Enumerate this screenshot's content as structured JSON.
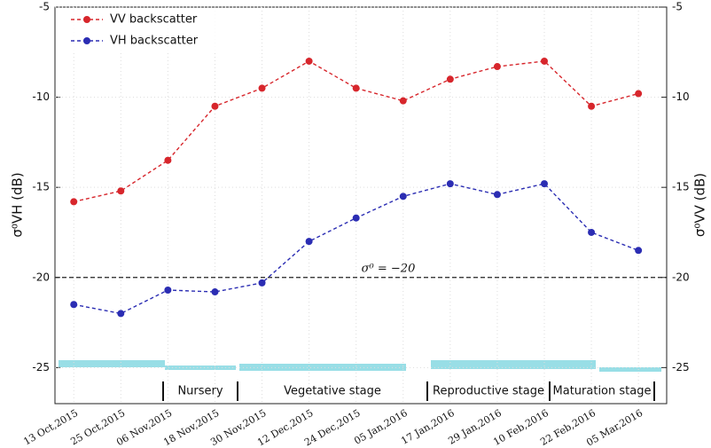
{
  "chart_data": {
    "type": "line",
    "categories": [
      "13 Oct,2015",
      "25 Oct,2015",
      "06 Nov,2015",
      "18 Nov,2015",
      "30 Nov,2015",
      "12 Dec,2015",
      "24 Dec,2015",
      "05 Jan,2016",
      "17 Jan,2016",
      "29 Jan,2016",
      "10 Feb,2016",
      "22 Feb,2016",
      "05 Mar,2016"
    ],
    "series": [
      {
        "name": "VV backscatter",
        "color": "#d7262c",
        "axis": "y2",
        "values": [
          -15.8,
          -15.2,
          -13.5,
          -10.5,
          -9.5,
          -8,
          -9.5,
          -10.2,
          -9,
          -8.3,
          -8,
          -10.5,
          -9.8
        ]
      },
      {
        "name": "VH backscatter",
        "color": "#2b2db3",
        "values": [
          -21.5,
          -22,
          -20.7,
          -20.8,
          -20.3,
          -18,
          -16.7,
          -15.5,
          -14.8,
          -15.4,
          -14.8,
          -17.5,
          -18.5
        ]
      }
    ],
    "ylabel": "σ⁰VH (dB)",
    "y2label": "σ⁰VV (dB)",
    "ylim": [
      -27,
      -5
    ],
    "yticks": [
      -25,
      -20,
      -15,
      -10,
      -5
    ],
    "y2lim": [
      -27,
      -5
    ],
    "y2ticks": [
      -25,
      -20,
      -15,
      -10,
      -5
    ],
    "reference_line": {
      "value": -20,
      "label": "σ⁰ = −20"
    },
    "stages": [
      "Nursery",
      "Vegetative stage",
      "Reproductive stage",
      "Maturation stage"
    ],
    "grid": true,
    "legend": "upper-left"
  }
}
